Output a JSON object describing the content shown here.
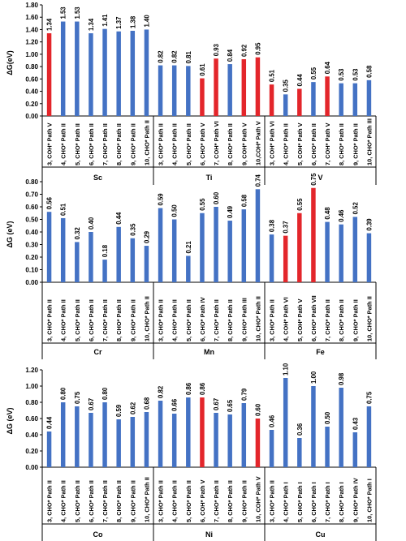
{
  "colors": {
    "default_bar": "#4472c4",
    "highlight_bar": "#e3262b",
    "axis": "#000000"
  },
  "chart_data": [
    {
      "type": "bar",
      "ylabel": "ΔG(eV)",
      "ylim": [
        0,
        1.8
      ],
      "yticks": [
        "0.00",
        "0.20",
        "0.40",
        "0.60",
        "0.80",
        "1.00",
        "1.20",
        "1.40",
        "1.60",
        "1.80"
      ],
      "grid": false,
      "groups": [
        {
          "name": "Sc",
          "bars": [
            {
              "label": "3, COH* Path V",
              "value": 1.34,
              "display": "1.34",
              "highlight": true
            },
            {
              "label": "4, CHO* Path II",
              "value": 1.53,
              "display": "1.53",
              "highlight": false
            },
            {
              "label": "5, CHO* Path II",
              "value": 1.53,
              "display": "1.53",
              "highlight": false
            },
            {
              "label": "6, CHO* Path II",
              "value": 1.34,
              "display": "1.34",
              "highlight": false
            },
            {
              "label": "7, CHO* Path II",
              "value": 1.41,
              "display": "1.41",
              "highlight": false
            },
            {
              "label": "8, CHO* Path II",
              "value": 1.37,
              "display": "1.37",
              "highlight": false
            },
            {
              "label": "9, CHO* Path II",
              "value": 1.38,
              "display": "1.38",
              "highlight": false
            },
            {
              "label": "10, CHO* Path II",
              "value": 1.4,
              "display": "1.40",
              "highlight": false
            }
          ]
        },
        {
          "name": "Ti",
          "bars": [
            {
              "label": "3, CHO* Path II",
              "value": 0.82,
              "display": "0.82",
              "highlight": false
            },
            {
              "label": "4, CHO* Path II",
              "value": 0.82,
              "display": "0.82",
              "highlight": false
            },
            {
              "label": "5, CHO* Path II",
              "value": 0.81,
              "display": "0.81",
              "highlight": false
            },
            {
              "label": "6, CHO* Path V",
              "value": 0.61,
              "display": "0.61",
              "highlight": true
            },
            {
              "label": "7, COH* Path VI",
              "value": 0.93,
              "display": "0.93",
              "highlight": true
            },
            {
              "label": "8, CHO* Path II",
              "value": 0.84,
              "display": "0.84",
              "highlight": false
            },
            {
              "label": "9, COH* Path V",
              "value": 0.92,
              "display": "0.92",
              "highlight": true
            },
            {
              "label": "10,COH* Path V",
              "value": 0.95,
              "display": "0.95",
              "highlight": true
            }
          ]
        },
        {
          "name": "V",
          "bars": [
            {
              "label": "3, COH* Path VI",
              "value": 0.51,
              "display": "0.51",
              "highlight": true
            },
            {
              "label": "4, CHO* Path II",
              "value": 0.35,
              "display": "0.35",
              "highlight": false
            },
            {
              "label": "5, COH* Path V",
              "value": 0.44,
              "display": "0.44",
              "highlight": true
            },
            {
              "label": "6, CHO* Path II",
              "value": 0.55,
              "display": "0.55",
              "highlight": false
            },
            {
              "label": "7, COH* Path V",
              "value": 0.64,
              "display": "0.64",
              "highlight": true
            },
            {
              "label": "8, CHO* Path II",
              "value": 0.53,
              "display": "0.53",
              "highlight": false
            },
            {
              "label": "9, CHO* Path II",
              "value": 0.53,
              "display": "0.53",
              "highlight": false
            },
            {
              "label": "10, CHO* Path III",
              "value": 0.58,
              "display": "0.58",
              "highlight": false
            }
          ]
        }
      ]
    },
    {
      "type": "bar",
      "ylabel": "ΔG (eV)",
      "ylim": [
        0,
        0.8
      ],
      "yticks": [
        "0.00",
        "0.10",
        "0.20",
        "0.30",
        "0.40",
        "0.50",
        "0.60",
        "0.70",
        "0.80"
      ],
      "grid": false,
      "groups": [
        {
          "name": "Cr",
          "bars": [
            {
              "label": "3, CHO* Path II",
              "value": 0.56,
              "display": "0.56",
              "highlight": false
            },
            {
              "label": "4, CHO* Path II",
              "value": 0.51,
              "display": "0.51",
              "highlight": false
            },
            {
              "label": "5, CHO* Path II",
              "value": 0.32,
              "display": "0.32",
              "highlight": false
            },
            {
              "label": "6, CHO* Path II",
              "value": 0.4,
              "display": "0.40",
              "highlight": false
            },
            {
              "label": "7, CHO* Path II",
              "value": 0.18,
              "display": "0.18",
              "highlight": false
            },
            {
              "label": "8, CHO* Path II",
              "value": 0.44,
              "display": "0.44",
              "highlight": false
            },
            {
              "label": "9, CHO* Path II",
              "value": 0.35,
              "display": "0.35",
              "highlight": false
            },
            {
              "label": "10, CHO* Path II",
              "value": 0.29,
              "display": "0.29",
              "highlight": false
            }
          ]
        },
        {
          "name": "Mn",
          "bars": [
            {
              "label": "3, CHO* Path II",
              "value": 0.59,
              "display": "0.59",
              "highlight": false
            },
            {
              "label": "4, CHO* Path II",
              "value": 0.5,
              "display": "0.50",
              "highlight": false
            },
            {
              "label": "5, CHO* Path II",
              "value": 0.21,
              "display": "0.21",
              "highlight": false
            },
            {
              "label": "6, CHO* Path IV",
              "value": 0.55,
              "display": "0.55",
              "highlight": false
            },
            {
              "label": "7, CHO* Path II",
              "value": 0.6,
              "display": "0.60",
              "highlight": false
            },
            {
              "label": "8, CHO* Path II",
              "value": 0.49,
              "display": "0.49",
              "highlight": false
            },
            {
              "label": "9, CHO* Path III",
              "value": 0.58,
              "display": "0.58",
              "highlight": false
            },
            {
              "label": "10, CHO* Path II",
              "value": 0.74,
              "display": "0.74",
              "highlight": false
            }
          ]
        },
        {
          "name": "Fe",
          "bars": [
            {
              "label": "3, CHO* Path II",
              "value": 0.38,
              "display": "0.38",
              "highlight": false
            },
            {
              "label": "4, COH* Path VI",
              "value": 0.37,
              "display": "0.37",
              "highlight": true
            },
            {
              "label": "5, COH* Path V",
              "value": 0.55,
              "display": "0.55",
              "highlight": true
            },
            {
              "label": "6, CHO* Path VII",
              "value": 0.75,
              "display": "0.75",
              "highlight": true
            },
            {
              "label": "7, CHO* Path II",
              "value": 0.48,
              "display": "0.48",
              "highlight": false
            },
            {
              "label": "8, CHO* Path II",
              "value": 0.46,
              "display": "0.46",
              "highlight": false
            },
            {
              "label": "9, CHO* Path II",
              "value": 0.52,
              "display": "0.52",
              "highlight": false
            },
            {
              "label": "10, CHO* Path II",
              "value": 0.39,
              "display": "0.39",
              "highlight": false
            }
          ]
        }
      ]
    },
    {
      "type": "bar",
      "ylabel": "ΔG (eV)",
      "ylim": [
        0,
        1.2
      ],
      "yticks": [
        "0.00",
        "0.20",
        "0.40",
        "0.60",
        "0.80",
        "1.00",
        "1.20"
      ],
      "grid": false,
      "groups": [
        {
          "name": "Co",
          "bars": [
            {
              "label": "3, CHO* Path II",
              "value": 0.44,
              "display": "0.44",
              "highlight": false
            },
            {
              "label": "4, CHO* Path II",
              "value": 0.8,
              "display": "0.80",
              "highlight": false
            },
            {
              "label": "5, CHO* Path II",
              "value": 0.75,
              "display": "0.75",
              "highlight": false
            },
            {
              "label": "6, CHO* Path II",
              "value": 0.67,
              "display": "0.67",
              "highlight": false
            },
            {
              "label": "7, CHO* Path II",
              "value": 0.8,
              "display": "0.80",
              "highlight": false
            },
            {
              "label": "8, CHO* Path II",
              "value": 0.59,
              "display": "0.59",
              "highlight": false
            },
            {
              "label": "9, CHO* Path II",
              "value": 0.62,
              "display": "0.62",
              "highlight": false
            },
            {
              "label": "10, CHO* Path II",
              "value": 0.68,
              "display": "0.68",
              "highlight": false
            }
          ]
        },
        {
          "name": "Ni",
          "bars": [
            {
              "label": "3, CHO* Path II",
              "value": 0.82,
              "display": "0.82",
              "highlight": false
            },
            {
              "label": "4, CHO* Path II",
              "value": 0.66,
              "display": "0.66",
              "highlight": false
            },
            {
              "label": "5, CHO* Path II",
              "value": 0.86,
              "display": "0.86",
              "highlight": false
            },
            {
              "label": "6, COH* Path V",
              "value": 0.86,
              "display": "0.86",
              "highlight": true
            },
            {
              "label": "7, CHO* Path II",
              "value": 0.67,
              "display": "0.67",
              "highlight": false
            },
            {
              "label": "8, CHO* Path II",
              "value": 0.65,
              "display": "0.65",
              "highlight": false
            },
            {
              "label": "9, CHO* Path II",
              "value": 0.79,
              "display": "0.79",
              "highlight": false
            },
            {
              "label": "10, COH* Path V",
              "value": 0.6,
              "display": "0.60",
              "highlight": true
            }
          ]
        },
        {
          "name": "Cu",
          "bars": [
            {
              "label": "3, CHO* Path II",
              "value": 0.46,
              "display": "0.46",
              "highlight": false
            },
            {
              "label": "4, CHO* Path I",
              "value": 1.1,
              "display": "1.10",
              "highlight": false
            },
            {
              "label": "5, CHO* Path I",
              "value": 0.36,
              "display": "0.36",
              "highlight": false
            },
            {
              "label": "6, CHO* Path I",
              "value": 1.0,
              "display": "1.00",
              "highlight": false
            },
            {
              "label": "7, CHO* Path I",
              "value": 0.5,
              "display": "0.50",
              "highlight": false
            },
            {
              "label": "8, CHO* Path I",
              "value": 0.98,
              "display": "0.98",
              "highlight": false
            },
            {
              "label": "9, CHO* Path IV",
              "value": 0.43,
              "display": "0.43",
              "highlight": false
            },
            {
              "label": "10, CHO* Path I",
              "value": 0.75,
              "display": "0.75",
              "highlight": false
            }
          ]
        }
      ]
    }
  ]
}
